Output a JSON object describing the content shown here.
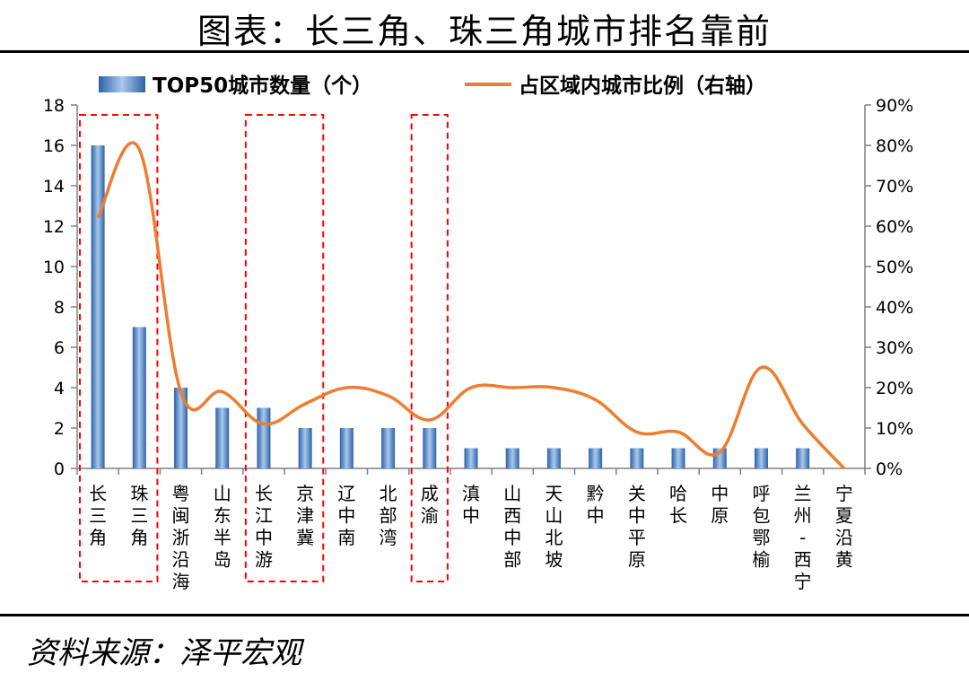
{
  "title": "图表：长三角、珠三角城市排名靠前",
  "source": "资料来源：泽平宏观",
  "colors": {
    "bar": "#3f7fc6",
    "line": "#ed7d31",
    "highlight": "#ff0000",
    "axis": "#808080"
  },
  "chart_data": {
    "type": "bar",
    "categories": [
      "长三角",
      "珠三角",
      "粤闽浙沿海",
      "山东半岛",
      "长江中游",
      "京津冀",
      "辽中南",
      "北部湾",
      "成渝",
      "滇中",
      "山西中部",
      "天山北坡",
      "黔中",
      "关中平原",
      "哈长",
      "中原",
      "呼包鄂榆",
      "兰州-西宁",
      "宁夏沿黄"
    ],
    "series": [
      {
        "name": "TOP50城市数量（个）",
        "type": "bar",
        "axis": "left",
        "values": [
          16,
          7,
          4,
          3,
          3,
          2,
          2,
          2,
          2,
          1,
          1,
          1,
          1,
          1,
          1,
          1,
          1,
          1,
          0
        ]
      },
      {
        "name": "占区域内城市比例（右轴）",
        "type": "line",
        "axis": "right",
        "values": [
          62,
          79,
          19,
          19,
          11,
          16,
          20,
          18,
          12,
          20,
          20,
          20,
          17,
          9,
          9,
          4,
          25,
          11,
          0
        ]
      }
    ],
    "y_left": {
      "ylim": [
        0,
        18
      ],
      "ticks": [
        "0",
        "2",
        "4",
        "6",
        "8",
        "10",
        "12",
        "14",
        "16",
        "18"
      ]
    },
    "y_right": {
      "ylim": [
        0,
        90
      ],
      "ticks": [
        "0%",
        "10%",
        "20%",
        "30%",
        "40%",
        "50%",
        "60%",
        "70%",
        "80%",
        "90%"
      ]
    },
    "highlight_groups": [
      [
        0,
        1
      ],
      [
        4,
        5
      ],
      [
        8,
        8
      ]
    ],
    "legend_position": "top",
    "grid": false
  }
}
